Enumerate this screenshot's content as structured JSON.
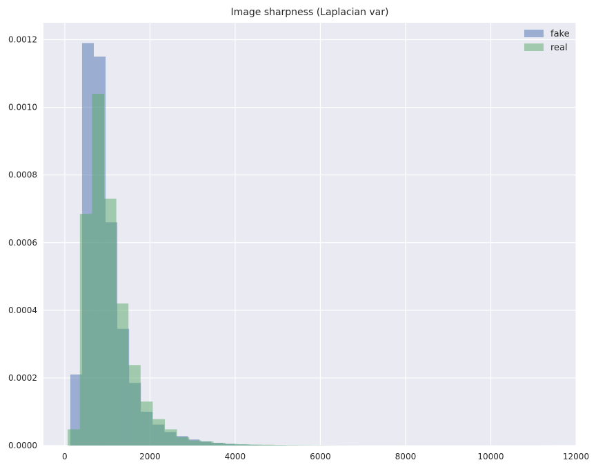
{
  "chart_data": {
    "type": "histogram",
    "title": "Image sharpness (Laplacian var)",
    "xlabel": "",
    "ylabel": "",
    "xlim": [
      -500,
      12000
    ],
    "ylim": [
      0,
      0.00125
    ],
    "xticks": [
      0,
      2000,
      4000,
      6000,
      8000,
      10000,
      12000
    ],
    "xtick_labels": [
      "0",
      "2000",
      "4000",
      "6000",
      "8000",
      "10000",
      "12000"
    ],
    "yticks": [
      0,
      0.0002,
      0.0004,
      0.0006,
      0.0008,
      0.001,
      0.0012
    ],
    "ytick_labels": [
      "0.0000",
      "0.0002",
      "0.0004",
      "0.0006",
      "0.0008",
      "0.0010",
      "0.0012"
    ],
    "grid": true,
    "legend_position": "top-right",
    "series": [
      {
        "name": "fake",
        "color": "#4c72b0",
        "opacity": 0.5,
        "bin_start": 130,
        "bin_width": 276,
        "values": [
          0.00021,
          0.00119,
          0.00115,
          0.00066,
          0.000345,
          0.000185,
          0.0001,
          6.2e-05,
          4e-05,
          2.8e-05,
          1.8e-05,
          1.2e-05,
          8e-06,
          5e-06,
          3e-06,
          2e-06,
          1.2e-06,
          8e-07,
          5e-07,
          3e-07,
          2e-07,
          2e-07,
          1e-07,
          1e-07,
          1e-07,
          1e-07,
          1e-07,
          1e-07,
          1e-07,
          1e-07,
          1e-07,
          1e-07,
          1e-07,
          1e-07,
          1e-07,
          1e-07,
          1e-07,
          1e-07,
          1e-07,
          1e-07
        ]
      },
      {
        "name": "real",
        "color": "#55a868",
        "opacity": 0.5,
        "bin_start": 70,
        "bin_width": 285,
        "values": [
          4.8e-05,
          0.000685,
          0.00104,
          0.00073,
          0.00042,
          0.000238,
          0.00013,
          7.8e-05,
          4.8e-05,
          2.5e-05,
          1.5e-05,
          1.2e-05,
          8e-06,
          5e-06,
          4e-06,
          3e-06,
          2.5e-06,
          1.8e-06,
          1.2e-06,
          8e-07,
          6e-07,
          4e-07,
          3e-07,
          2e-07,
          1e-07,
          1e-07,
          1e-07,
          1e-07,
          1e-07,
          1e-07,
          1e-07,
          1e-07,
          1e-07,
          1e-07,
          1e-07,
          1e-07,
          1e-07,
          1e-07,
          1e-07,
          1e-07
        ]
      }
    ]
  }
}
